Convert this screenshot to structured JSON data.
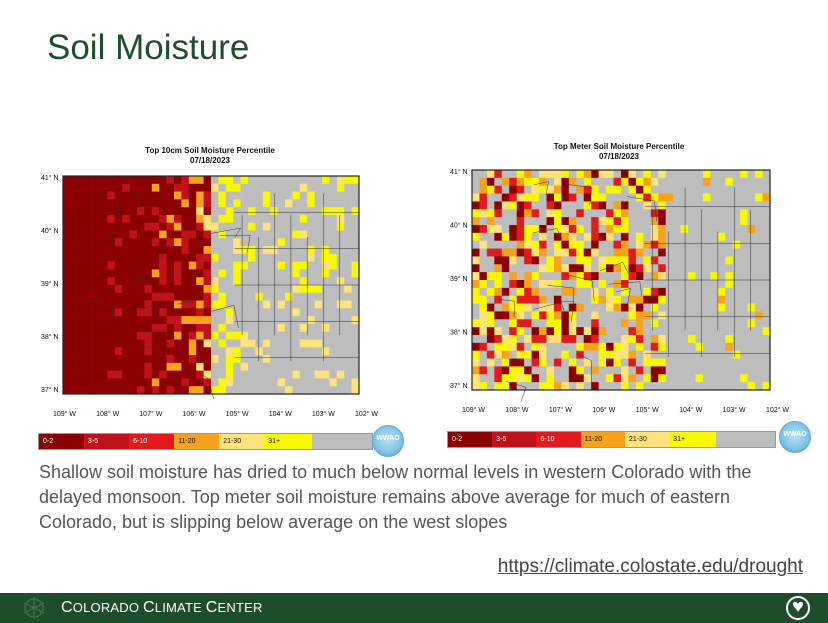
{
  "slide": {
    "title": "Soil Moisture",
    "body": "Shallow soil moisture has dried to much below normal levels in western Colorado with the delayed monsoon. Top meter soil moisture remains above average for much of eastern Colorado, but is slipping below average on the west slopes",
    "link": "https://climate.colostate.edu/drought"
  },
  "maps": [
    {
      "title": "Top 10cm Soil Moisture Percentile",
      "date": "07/18/2023",
      "lat_labels": [
        "41° N",
        "40° N",
        "39° N",
        "38° N",
        "37° N"
      ],
      "lon_labels": [
        "109° W",
        "108° W",
        "107° W",
        "106° W",
        "105° W",
        "104° W",
        "103° W",
        "102° W"
      ]
    },
    {
      "title": "Top Meter Soil Moisture Percentile",
      "date": "07/18/2023",
      "lat_labels": [
        "41° N",
        "40° N",
        "39° N",
        "38° N",
        "37° N"
      ],
      "lon_labels": [
        "109° W",
        "108° W",
        "107° W",
        "106° W",
        "105° W",
        "104° W",
        "103° W",
        "102° W"
      ]
    }
  ],
  "legend": [
    {
      "label": "0-2",
      "color": "#8b0000",
      "text_color": "#ffffff"
    },
    {
      "label": "3-5",
      "color": "#c1121c",
      "text_color": "#ffffff"
    },
    {
      "label": "6-10",
      "color": "#e31a1c",
      "text_color": "#ffffff"
    },
    {
      "label": "11-20",
      "color": "#f7a21b",
      "text_color": "#111111"
    },
    {
      "label": "21-30",
      "color": "#fde37a",
      "text_color": "#111111"
    },
    {
      "label": "31+",
      "color": "#f8f800",
      "text_color": "#111111"
    },
    {
      "label": "",
      "color": "#bdbdbd",
      "text_color": "#111111"
    }
  ],
  "logo_text": "WWAO",
  "footer": {
    "text_cap1": "C",
    "text_rest1": "OLORADO ",
    "text_cap2": "C",
    "text_rest2": "LIMATE ",
    "text_cap3": "C",
    "text_rest3": "ENTER"
  },
  "colors": {
    "title": "#1f4d2e",
    "footer_bg": "#1e4d2b",
    "body_text": "#555555",
    "map_gray": "#bdbdbd"
  }
}
